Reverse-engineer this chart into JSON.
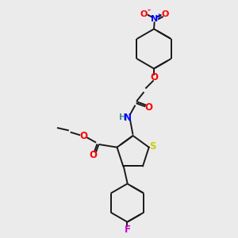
{
  "bg_color": "#ebebeb",
  "bond_color": "#1a1a1a",
  "colors": {
    "O": "#ff0000",
    "N": "#0000ff",
    "S": "#cccc00",
    "F": "#cc00cc",
    "H": "#4a9090",
    "C": "#1a1a1a"
  },
  "figsize": [
    3.0,
    3.0
  ],
  "dpi": 100
}
